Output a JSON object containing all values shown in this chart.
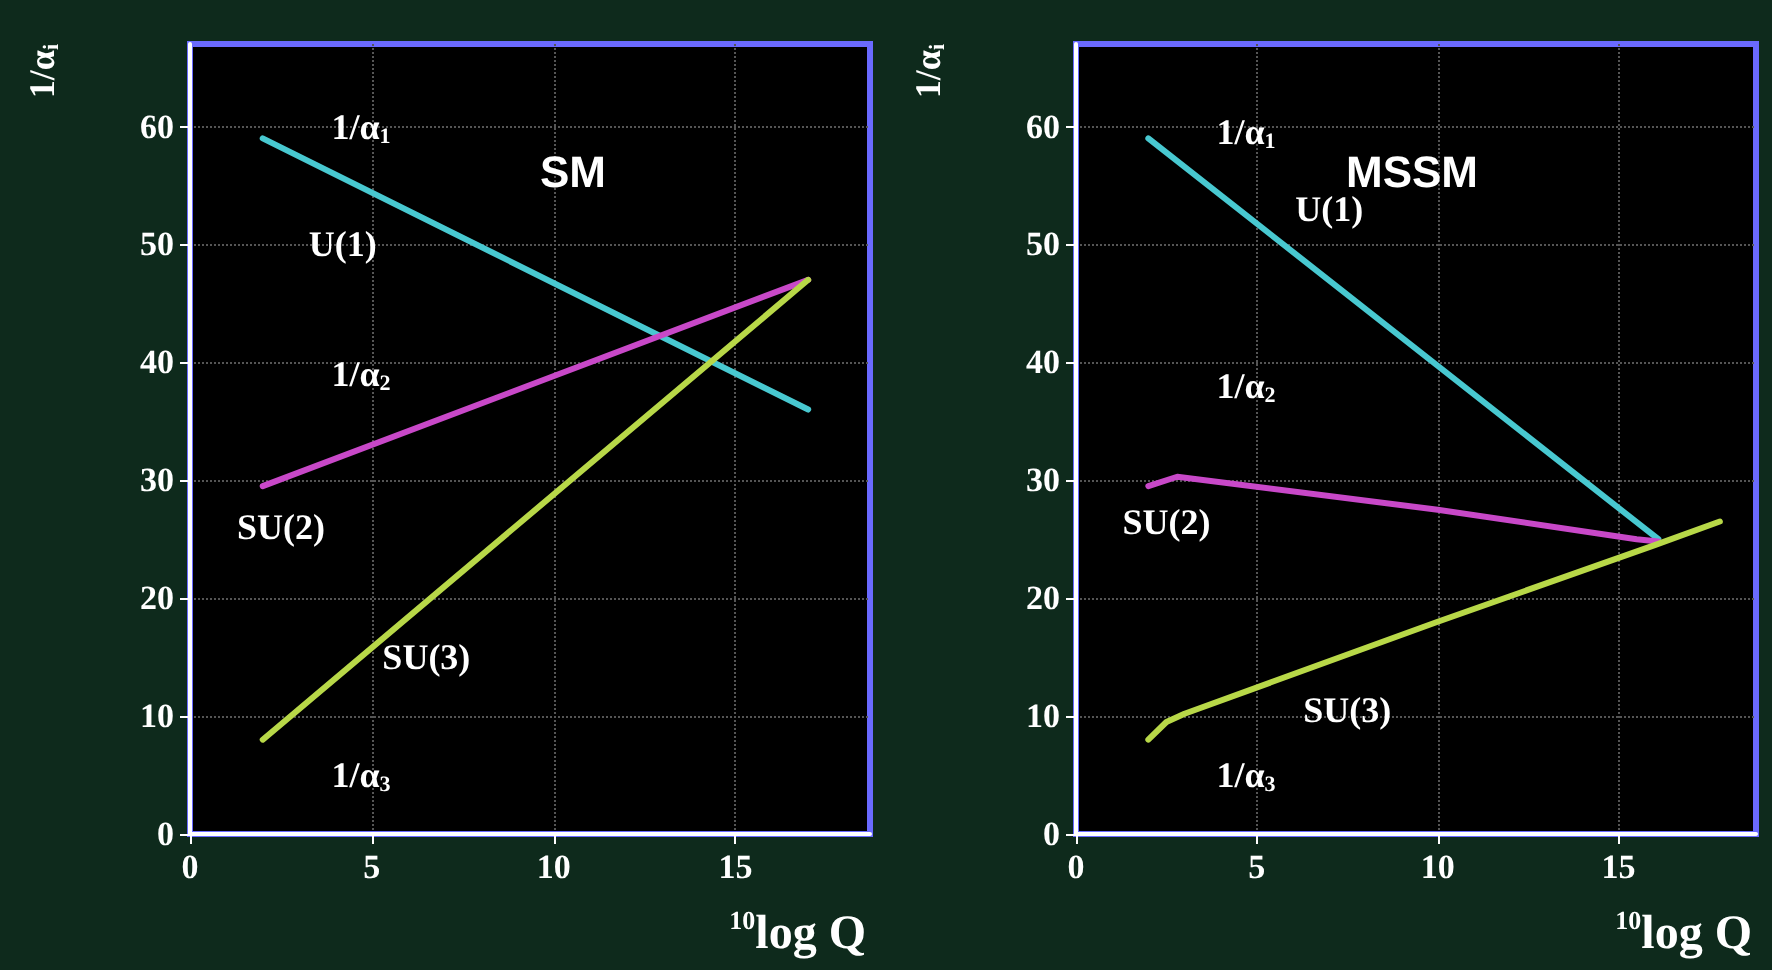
{
  "chart_data": [
    {
      "type": "line",
      "title": "SM",
      "xlabel": "$^{10}$log Q",
      "ylabel": "1/α$_{i}$",
      "xlim": [
        0,
        18.7
      ],
      "ylim": [
        0,
        67
      ],
      "xticks": [
        0,
        5,
        10,
        15
      ],
      "yticks": [
        0,
        10,
        20,
        30,
        40,
        50,
        60
      ],
      "grid": true,
      "marker": "none",
      "series": [
        {
          "color": "#48c8d0",
          "x": [
            2,
            17
          ],
          "values": [
            59,
            36
          ]
        },
        {
          "color": "#c848c8",
          "x": [
            2,
            17
          ],
          "values": [
            29.5,
            47
          ]
        },
        {
          "color": "#b8d848",
          "x": [
            2,
            17
          ],
          "values": [
            8,
            47
          ]
        }
      ],
      "annotations": [
        "1/α$_{1}$",
        "U(1)",
        "1/α$_{2}$",
        "SU(2)",
        "SU(3)",
        "1/α$_{3}$"
      ]
    },
    {
      "type": "line",
      "title": "MSSM",
      "xlabel": "$^{10}$log Q",
      "ylabel": "1/α$_{i}$",
      "xlim": [
        0,
        18.8
      ],
      "ylim": [
        0,
        67
      ],
      "xticks": [
        0,
        5,
        10,
        15
      ],
      "yticks": [
        0,
        10,
        20,
        30,
        40,
        50,
        60
      ],
      "grid": true,
      "marker": "none",
      "series": [
        {
          "color": "#48c8d0",
          "x": [
            2,
            16.1
          ],
          "values": [
            59,
            25
          ]
        },
        {
          "color": "#c848c8",
          "x": [
            2,
            2.8,
            10,
            15.5,
            16.1
          ],
          "values": [
            29.5,
            30.3,
            27.5,
            25,
            24.8
          ]
        },
        {
          "color": "#b8d848",
          "x": [
            2,
            2.5,
            3,
            10,
            16,
            17.8
          ],
          "values": [
            8,
            9.5,
            10.2,
            18,
            24.5,
            26.5
          ]
        }
      ],
      "annotations": [
        "1/α$_{1}$",
        "U(1)",
        "1/α$_{2}$",
        "SU(2)",
        "SU(3)",
        "1/α$_{3}$"
      ]
    }
  ]
}
